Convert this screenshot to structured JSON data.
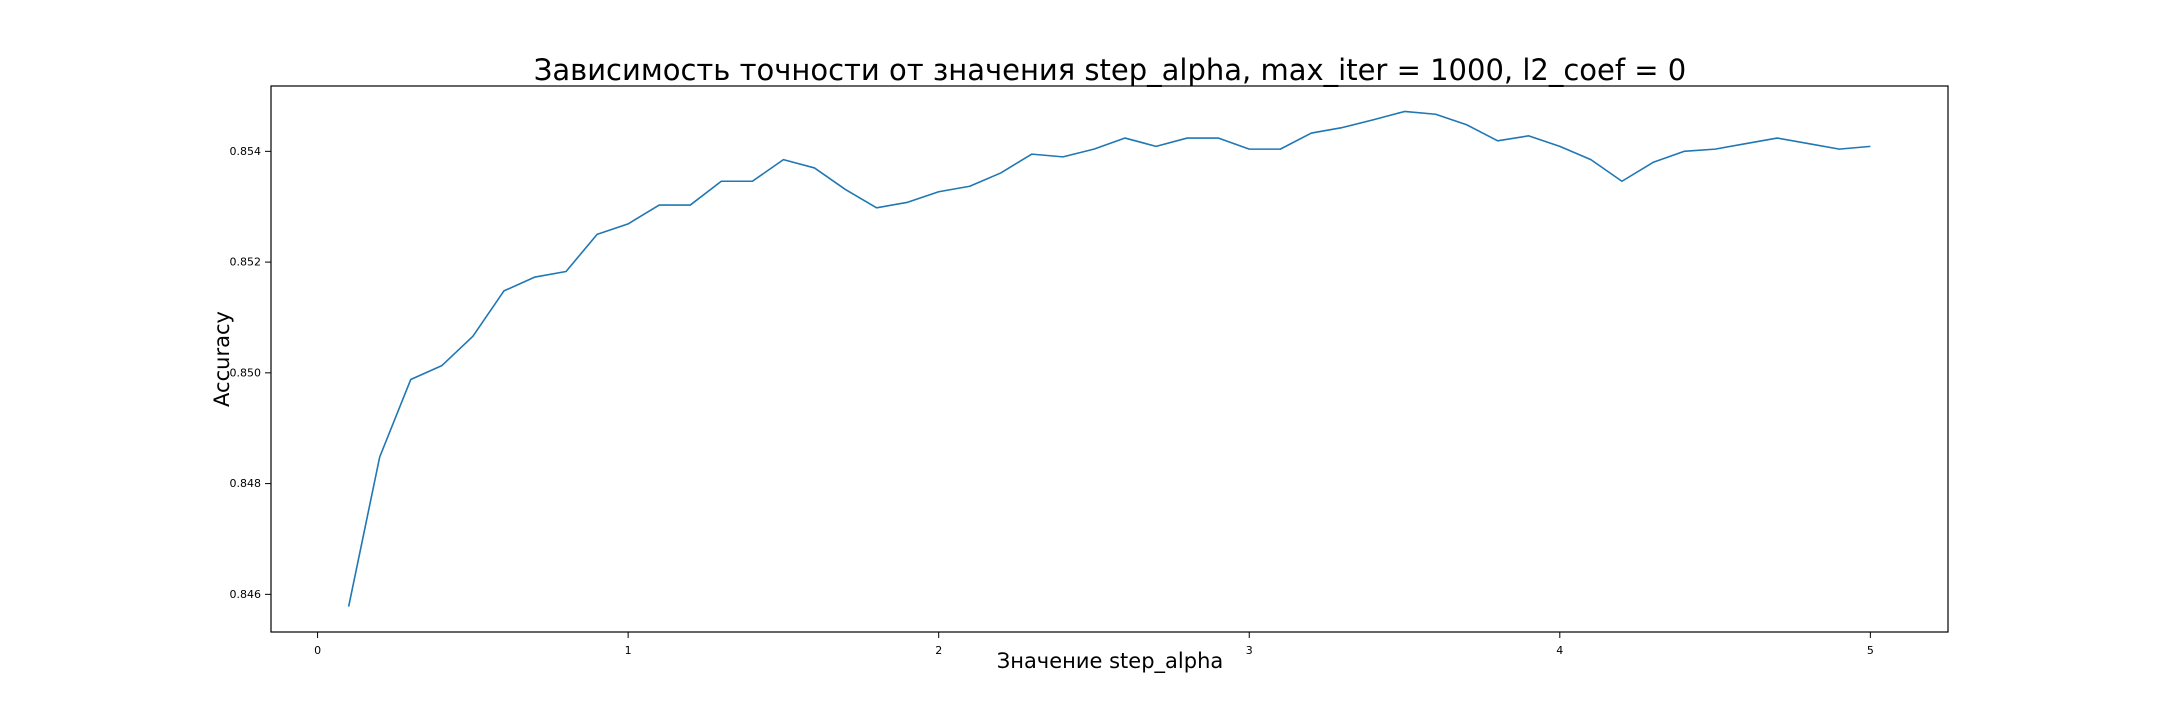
{
  "chart_data": {
    "type": "line",
    "title": "Зависимость точности от значения step_alpha, max_iter = 1000, l2_coef = 0",
    "xlabel": "Значение step_alpha",
    "ylabel": "Accuracy",
    "xlim": [
      -0.15,
      5.25
    ],
    "ylim": [
      0.84532,
      0.85518
    ],
    "xticks": [
      0,
      1,
      2,
      3,
      4,
      5
    ],
    "yticks": [
      0.846,
      0.848,
      0.85,
      0.852,
      0.854
    ],
    "xtick_labels": [
      "0",
      "1",
      "2",
      "3",
      "4",
      "5"
    ],
    "ytick_labels": [
      "0.846",
      "0.848",
      "0.850",
      "0.852",
      "0.854"
    ],
    "grid": false,
    "series": [
      {
        "color": "#1f77b4",
        "x": [
          0.1,
          0.2,
          0.3,
          0.4,
          0.5,
          0.6,
          0.7,
          0.8,
          0.9,
          1.0,
          1.1,
          1.2,
          1.3,
          1.4,
          1.5,
          1.6,
          1.7,
          1.8,
          1.9,
          2.0,
          2.1,
          2.2,
          2.3,
          2.4,
          2.5,
          2.6,
          2.7,
          2.8,
          2.9,
          3.0,
          3.1,
          3.2,
          3.3,
          3.4,
          3.5,
          3.6,
          3.7,
          3.8,
          3.9,
          4.0,
          4.1,
          4.2,
          4.3,
          4.4,
          4.5,
          4.6,
          4.7,
          4.8,
          4.9,
          5.0
        ],
        "y": [
          0.84578,
          0.84848,
          0.84988,
          0.85013,
          0.85066,
          0.85148,
          0.85173,
          0.85183,
          0.8525,
          0.85269,
          0.85303,
          0.85303,
          0.85346,
          0.85346,
          0.85385,
          0.8537,
          0.85331,
          0.85298,
          0.85308,
          0.85327,
          0.85337,
          0.85361,
          0.85395,
          0.8539,
          0.85404,
          0.85424,
          0.85409,
          0.85424,
          0.85424,
          0.85404,
          0.85404,
          0.85433,
          0.85443,
          0.85457,
          0.85472,
          0.85467,
          0.85448,
          0.85419,
          0.85428,
          0.85409,
          0.85385,
          0.85346,
          0.8538,
          0.854,
          0.85404,
          0.85414,
          0.85424,
          0.85414,
          0.85404,
          0.85409
        ]
      }
    ]
  }
}
